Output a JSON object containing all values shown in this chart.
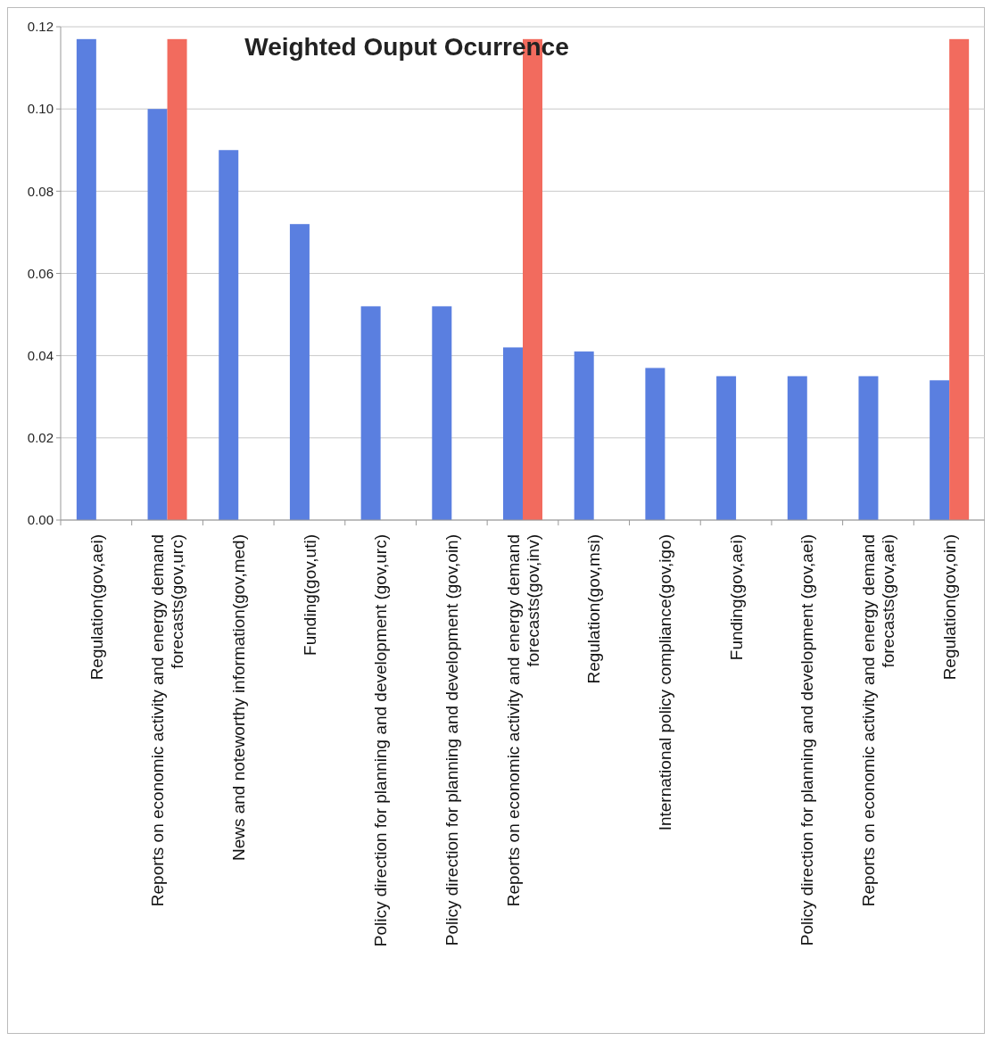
{
  "chart_data": {
    "type": "bar",
    "title": "Weighted Ouput Ocurrence",
    "categories": [
      "Regulation(gov,aei)",
      "Reports on economic activity and energy demand forecasts(gov,urc)",
      "News and noteworthy information(gov,med)",
      "Funding(gov,uti)",
      "Policy direction for planning and development (gov,urc)",
      "Policy direction for planning and development (gov,oin)",
      "Reports on economic activity and energy demand forecasts(gov,inv)",
      "Regulation(gov,msi)",
      "International policy compliance(gov,igo)",
      "Funding(gov,aei)",
      "Policy direction for planning and development (gov,aei)",
      "Reports on economic activity and energy demand forecasts(gov,aei)",
      "Regulation(gov,oin)"
    ],
    "series": [
      {
        "color": "#5a7fe0",
        "values": [
          0.117,
          0.1,
          0.09,
          0.072,
          0.052,
          0.052,
          0.042,
          0.041,
          0.037,
          0.035,
          0.035,
          0.035,
          0.034
        ]
      },
      {
        "color": "#f26b5e",
        "values": [
          null,
          0.117,
          null,
          null,
          null,
          null,
          0.117,
          null,
          null,
          null,
          null,
          null,
          0.117
        ]
      }
    ],
    "ylim": [
      0,
      0.12
    ],
    "yticks": [
      {
        "value": 0,
        "label": "0.00"
      },
      {
        "value": 0.02,
        "label": "0.02"
      },
      {
        "value": 0.04,
        "label": "0.04"
      },
      {
        "value": 0.06,
        "label": "0.06"
      },
      {
        "value": 0.08,
        "label": "0.08"
      },
      {
        "value": 0.1,
        "label": "0.10"
      },
      {
        "value": 0.12,
        "label": "0.12"
      }
    ],
    "grid": "y"
  }
}
